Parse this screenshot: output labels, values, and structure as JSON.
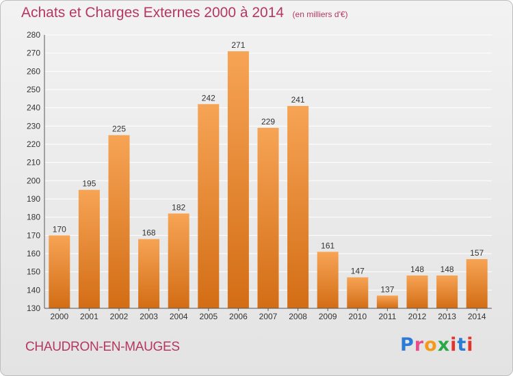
{
  "title": "Achats et Charges Externes 2000 à 2014",
  "unit_note": "(en milliers d'€)",
  "commune": "CHAUDRON-EN-MAUGES",
  "brand": {
    "p": "P",
    "r": "r",
    "o": "o",
    "x": "x",
    "i": "i",
    "t": "t",
    "i2": "i"
  },
  "colors": {
    "title": "#b5375f",
    "bar_top": "#f6a455",
    "bar_bottom": "#d36d15",
    "grid": "#ffffff"
  },
  "chart_data": {
    "type": "bar",
    "title": "Achats et Charges Externes 2000 à 2014",
    "subtitle": "(en milliers d'€)",
    "categories": [
      "2000",
      "2001",
      "2002",
      "2003",
      "2004",
      "2005",
      "2006",
      "2007",
      "2008",
      "2009",
      "2010",
      "2011",
      "2012",
      "2013",
      "2014"
    ],
    "values": [
      170,
      195,
      225,
      168,
      182,
      242,
      271,
      229,
      241,
      161,
      147,
      137,
      148,
      148,
      157
    ],
    "ylim": [
      130,
      280
    ],
    "yticks": [
      130,
      140,
      150,
      160,
      170,
      180,
      190,
      200,
      210,
      220,
      230,
      240,
      250,
      260,
      270,
      280
    ],
    "grid": true,
    "data_labels": true
  }
}
